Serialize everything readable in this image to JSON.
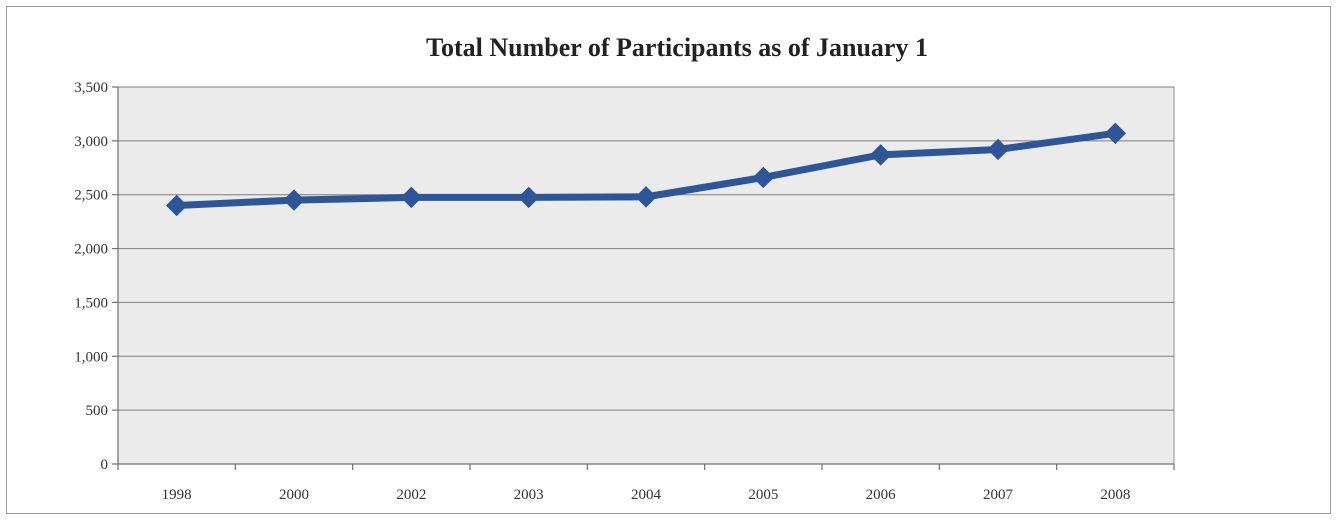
{
  "chart_data": {
    "type": "line",
    "title": "Total Number of Participants as of January 1",
    "xlabel": "",
    "ylabel": "",
    "categories": [
      "1998",
      "2000",
      "2002",
      "2003",
      "2004",
      "2005",
      "2006",
      "2007",
      "2008"
    ],
    "series": [
      {
        "values": [
          2400,
          2450,
          2475,
          2475,
          2480,
          2660,
          2870,
          2920,
          3070
        ],
        "color": "#2e5597",
        "marker": "diamond"
      }
    ],
    "ylim": [
      0,
      3500
    ],
    "y_ticks": [
      0,
      500,
      1000,
      1500,
      2000,
      2500,
      3000,
      3500
    ],
    "y_tick_labels": [
      "0",
      "500",
      "1,000",
      "1,500",
      "2,000",
      "2,500",
      "3,000",
      "3,500"
    ],
    "grid": true,
    "legend": "none",
    "plot_background": "#ebebeb"
  }
}
